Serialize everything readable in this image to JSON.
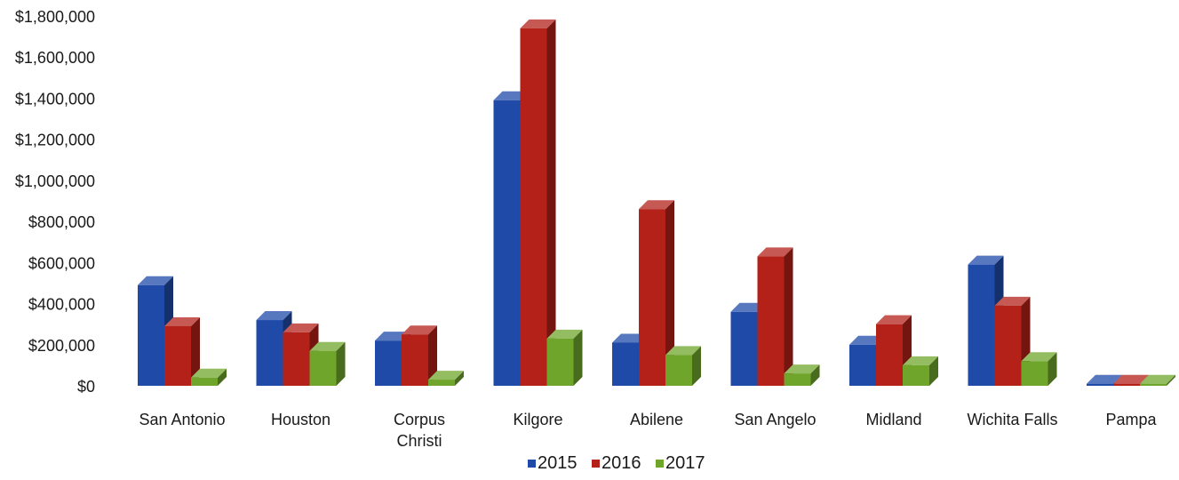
{
  "chart_data": {
    "type": "bar",
    "categories": [
      [
        "San Antonio"
      ],
      [
        "Houston"
      ],
      [
        "Corpus",
        "Christi"
      ],
      [
        "Kilgore"
      ],
      [
        "Abilene"
      ],
      [
        "San Angelo"
      ],
      [
        "Midland"
      ],
      [
        "Wichita Falls"
      ],
      [
        "Pampa"
      ]
    ],
    "series": [
      {
        "name": "2015",
        "color": "#1f4aa8",
        "values": [
          490000,
          320000,
          220000,
          1390000,
          210000,
          360000,
          200000,
          590000,
          10000
        ]
      },
      {
        "name": "2016",
        "color": "#b32119",
        "values": [
          290000,
          260000,
          250000,
          1740000,
          860000,
          630000,
          300000,
          390000,
          10000
        ]
      },
      {
        "name": "2017",
        "color": "#70a52c",
        "values": [
          40000,
          170000,
          30000,
          230000,
          150000,
          60000,
          100000,
          120000,
          10000
        ]
      }
    ],
    "ylim": [
      0,
      1800000
    ],
    "yticks": [
      "$0",
      "$200,000",
      "$400,000",
      "$600,000",
      "$800,000",
      "$1,000,000",
      "$1,200,000",
      "$1,400,000",
      "$1,600,000",
      "$1,800,000"
    ],
    "title": "",
    "xlabel": "",
    "ylabel": "",
    "legend_position": "bottom",
    "grid": false,
    "style": "3d-clustered-column"
  }
}
